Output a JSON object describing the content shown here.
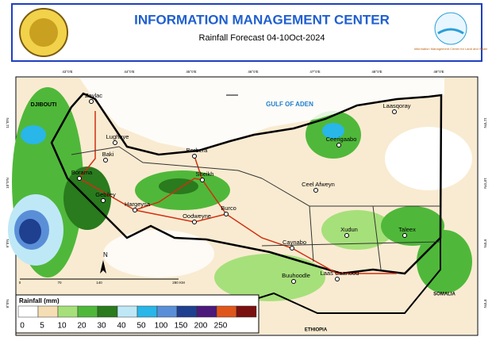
{
  "header": {
    "title": "INFORMATION MANAGEMENT CENTER",
    "subtitle": "Rainfall Forecast 04-10Oct-2024",
    "logo_text": "Information Management Center for Land and Water"
  },
  "map": {
    "top_coords": [
      "43°0'E",
      "44°0'E",
      "45°0'E",
      "46°0'E",
      "47°0'E",
      "48°0'E",
      "49°0'E"
    ],
    "left_coords": [
      "11°0'N",
      "10°0'N",
      "9°0'N",
      "8°0'N"
    ],
    "right_coords": [
      "11°0'N",
      "10°0'N",
      "9°0'N",
      "8°0'N"
    ],
    "regions": [
      "DJIBOUTI",
      "GULF OF ADEN",
      "ETHIOPIA",
      "SOMALIA"
    ],
    "cities": [
      "Zeylac",
      "Lughaye",
      "Baki",
      "Borama",
      "Gebiley",
      "Hargeysa",
      "Berbera",
      "Sheikh",
      "Oodweyne",
      "Burco",
      "Ceerigaabo",
      "Laasqoray",
      "Ceel Afweyn",
      "Xudun",
      "Taleex",
      "Caynabo",
      "Buuhoodle",
      "Laas Caanood"
    ],
    "north": "N",
    "scale": [
      "0",
      "70",
      "140",
      "280 KM"
    ]
  },
  "legend": {
    "title": "Rainfall (mm)",
    "breaks": [
      0,
      5,
      10,
      20,
      30,
      40,
      50,
      100,
      150,
      200,
      250
    ],
    "colors": [
      "#ffffff",
      "#f5deb3",
      "#a6e07a",
      "#4fb83a",
      "#2a7a1e",
      "#bfe8f7",
      "#29b6e8",
      "#5a8fd8",
      "#1f3f8f",
      "#4b1a7a",
      "#e0561a",
      "#7a1010"
    ]
  }
}
